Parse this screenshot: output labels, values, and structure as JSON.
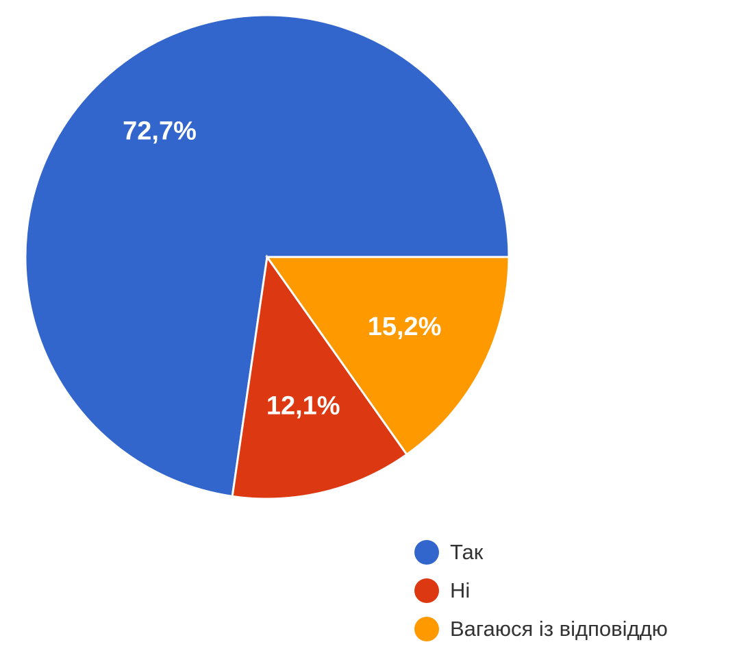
{
  "chart_data": {
    "type": "pie",
    "slices": [
      {
        "label": "Так",
        "value": 72.7,
        "display": "72,7%",
        "color": "#3366cc"
      },
      {
        "label": "Ні",
        "value": 12.1,
        "display": "12,1%",
        "color": "#dc3912"
      },
      {
        "label": "Вагаюся із відповіддю",
        "value": 15.2,
        "display": "15,2%",
        "color": "#ff9900"
      }
    ],
    "direction": "counterclockwise",
    "start": "3 o'clock",
    "legend_position": "bottom-right"
  }
}
